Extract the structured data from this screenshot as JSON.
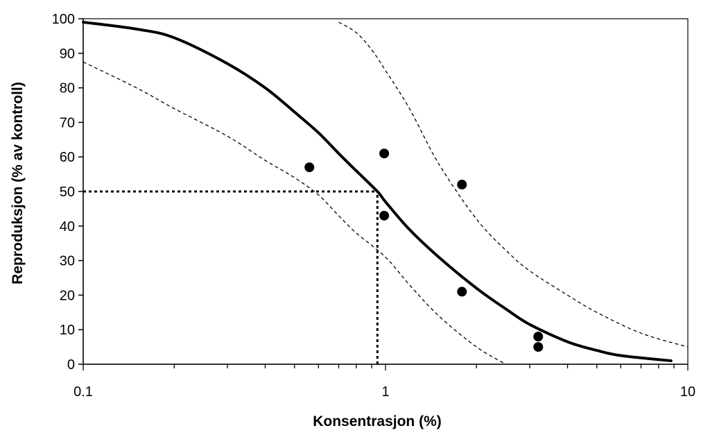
{
  "chart_data": {
    "type": "scatter",
    "title": "",
    "xlabel": "Konsentrasjon (%)",
    "ylabel": "Reproduksjon (% av kontroll)",
    "x_scale": "log",
    "xlim": [
      0.1,
      10
    ],
    "ylim": [
      0,
      100
    ],
    "x_ticks": [
      0.1,
      1,
      10
    ],
    "x_tick_labels": [
      "0.1",
      "1",
      "10"
    ],
    "y_ticks": [
      0,
      10,
      20,
      30,
      40,
      50,
      60,
      70,
      80,
      90,
      100
    ],
    "y_tick_labels": [
      "0",
      "10",
      "20",
      "30",
      "40",
      "50",
      "60",
      "70",
      "80",
      "90",
      "100"
    ],
    "grid": false,
    "legend": "none",
    "series": [
      {
        "kind": "points",
        "x": [
          0.56,
          0.99,
          0.99,
          1.79,
          1.79,
          3.2,
          3.2
        ],
        "y": [
          57,
          61,
          43,
          52,
          21,
          8,
          5
        ],
        "color": "#000000"
      },
      {
        "kind": "fitted-line",
        "x": [
          0.1,
          0.15,
          0.2,
          0.3,
          0.4,
          0.5,
          0.6,
          0.7,
          0.8,
          0.94,
          1.0,
          1.2,
          1.5,
          2.0,
          2.5,
          3.0,
          4.0,
          5.0,
          6.0,
          8.8
        ],
        "y": [
          99,
          97,
          94.5,
          87,
          80,
          73,
          67,
          61,
          56,
          50,
          47,
          39,
          31,
          22,
          16,
          11.5,
          6.5,
          4,
          2.5,
          1
        ],
        "color": "#000000",
        "style": "solid"
      },
      {
        "kind": "confidence-bound",
        "x": [
          0.1,
          0.15,
          0.2,
          0.3,
          0.4,
          0.5,
          0.6,
          0.7,
          0.8,
          1.0,
          1.2,
          1.5,
          2.0,
          2.5
        ],
        "y": [
          87.5,
          80,
          74,
          66,
          59,
          54,
          49,
          43,
          38,
          31,
          23,
          14,
          5,
          0
        ],
        "color": "#000000",
        "style": "dashed"
      },
      {
        "kind": "confidence-bound",
        "x": [
          0.7,
          0.8,
          0.9,
          1.0,
          1.2,
          1.5,
          2.0,
          2.5,
          3.0,
          4.0,
          5.0,
          7.0,
          10.0
        ],
        "y": [
          99,
          96,
          91,
          85,
          74,
          58,
          42,
          33,
          27,
          20,
          15,
          9,
          5
        ],
        "color": "#000000",
        "style": "dashed"
      }
    ],
    "reference_lines": [
      {
        "kind": "horizontal",
        "y": 50,
        "x_from": 0.1,
        "x_to": 0.94,
        "style": "dotted"
      },
      {
        "kind": "vertical",
        "x": 0.94,
        "y_from": 0,
        "y_to": 50,
        "style": "dotted"
      }
    ]
  }
}
